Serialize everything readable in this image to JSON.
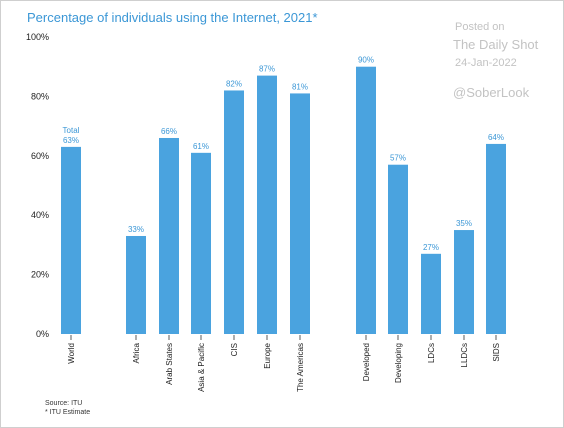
{
  "chart_data": {
    "type": "bar",
    "title": "Percentage of individuals using the Internet, 2021*",
    "xlabel": "",
    "ylabel": "",
    "ylim": [
      0,
      100
    ],
    "yticks": [
      0,
      20,
      40,
      60,
      80,
      100
    ],
    "ytick_labels": [
      "0%",
      "20%",
      "40%",
      "60%",
      "80%",
      "100%"
    ],
    "grid": false,
    "legend": "none",
    "bar_color": "#4aa3df",
    "label_color": "#3b97d6",
    "categories": [
      "World",
      "Africa",
      "Arab States",
      "Asia & Pacific",
      "CIS",
      "Europe",
      "The Americas",
      "Developed",
      "Developing",
      "LDCs",
      "LLDCs",
      "SIDS"
    ],
    "values": [
      63,
      33,
      66,
      61,
      82,
      87,
      81,
      90,
      57,
      27,
      35,
      64
    ],
    "data_labels": [
      "Total\n63%",
      "33%",
      "66%",
      "61%",
      "82%",
      "87%",
      "81%",
      "90%",
      "57%",
      "27%",
      "35%",
      "64%"
    ]
  },
  "watermark": {
    "posted": "Posted on",
    "site": "The Daily Shot",
    "date": "24-Jan-2022",
    "handle": "@SoberLook"
  },
  "source_lines": [
    "Source: ITU",
    "* ITU Estimate"
  ]
}
